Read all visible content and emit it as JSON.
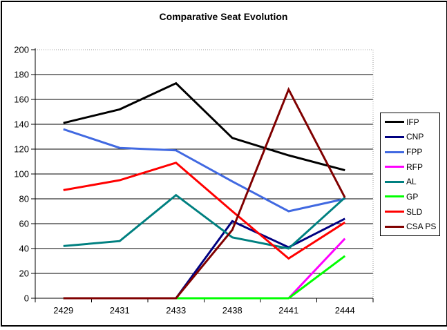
{
  "chart_data": {
    "type": "line",
    "title": "Comparative Seat Evolution",
    "categories": [
      "2429",
      "2431",
      "2433",
      "2438",
      "2441",
      "2444"
    ],
    "series": [
      {
        "name": "IFP",
        "color": "#000000",
        "values": [
          141,
          152,
          173,
          129,
          115,
          103
        ]
      },
      {
        "name": "CNP",
        "color": "#000080",
        "values": [
          0,
          0,
          0,
          62,
          41,
          64
        ]
      },
      {
        "name": "FPP",
        "color": "#4169E1",
        "values": [
          136,
          121,
          119,
          94,
          70,
          80
        ]
      },
      {
        "name": "RFP",
        "color": "#FF00FF",
        "values": [
          0,
          0,
          0,
          0,
          0,
          48
        ]
      },
      {
        "name": "AL",
        "color": "#008080",
        "values": [
          42,
          46,
          83,
          49,
          40,
          81
        ]
      },
      {
        "name": "GP",
        "color": "#00FF00",
        "values": [
          0,
          0,
          0,
          0,
          0,
          34
        ]
      },
      {
        "name": "SLD",
        "color": "#FF0000",
        "values": [
          87,
          95,
          109,
          70,
          32,
          61
        ]
      },
      {
        "name": "CSA PS",
        "color": "#800000",
        "values": [
          0,
          0,
          0,
          55,
          168,
          81
        ]
      }
    ],
    "xlabel": "",
    "ylabel": "",
    "ylim": [
      0,
      200
    ],
    "yticks": [
      0,
      20,
      40,
      60,
      80,
      100,
      120,
      140,
      160,
      180,
      200
    ],
    "grid": true,
    "legend_position": "right",
    "frame_dotted_color": "#999999",
    "gridline_color": "#000000",
    "background_color": "#ffffff"
  }
}
